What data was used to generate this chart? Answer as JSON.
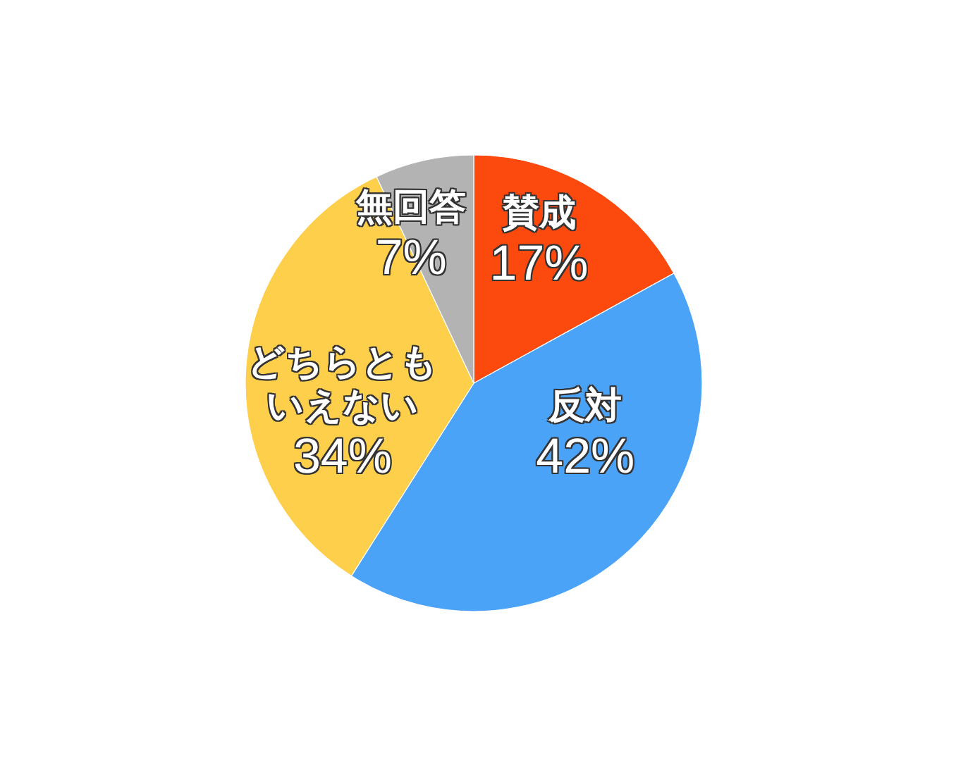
{
  "chart_data": {
    "type": "pie",
    "categories": [
      "賛成",
      "反対",
      "どちらともいえない",
      "無回答"
    ],
    "values": [
      17,
      42,
      34,
      7
    ],
    "colors": [
      "#fc4a0f",
      "#4ba3f7",
      "#fdcf4b",
      "#b3b3b3"
    ],
    "value_labels": [
      "17%",
      "42%",
      "34%",
      "7%"
    ]
  }
}
